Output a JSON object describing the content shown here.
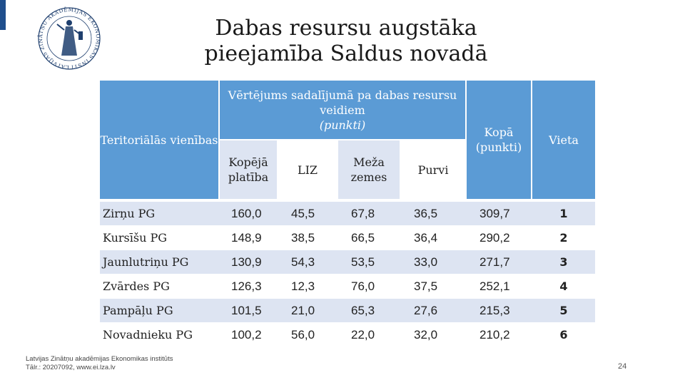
{
  "title": "Dabas resursu augstāka pieejamība Saldus novadā",
  "logo": {
    "ring_text": "LATVIJAS ZINĀTŅU AKADĒMIJAS EKONOMIKAS INSTITŪTS"
  },
  "table": {
    "headers": {
      "territory": "Teritoriālās vienības",
      "group": "Vērtējums sadalījumā pa dabas resursu veidiem",
      "group_unit": "(punkti)",
      "total": "Kopā (punkti)",
      "place": "Vieta",
      "sub": [
        "Kopējā platība",
        "LIZ",
        "Meža zemes",
        "Purvi"
      ]
    },
    "rows": [
      {
        "name": "Zirņu PG",
        "vals": [
          "160,0",
          "45,5",
          "67,8",
          "36,5"
        ],
        "total": "309,7",
        "place": "1"
      },
      {
        "name": "Kursīšu PG",
        "vals": [
          "148,9",
          "38,5",
          "66,5",
          "36,4"
        ],
        "total": "290,2",
        "place": "2"
      },
      {
        "name": "Jaunlutriņu PG",
        "vals": [
          "130,9",
          "54,3",
          "53,5",
          "33,0"
        ],
        "total": "271,7",
        "place": "3"
      },
      {
        "name": "Zvārdes PG",
        "vals": [
          "126,3",
          "12,3",
          "76,0",
          "37,5"
        ],
        "total": "252,1",
        "place": "4"
      },
      {
        "name": "Pampāļu PG",
        "vals": [
          "101,5",
          "21,0",
          "65,3",
          "27,6"
        ],
        "total": "215,3",
        "place": "5"
      },
      {
        "name": "Novadnieku PG",
        "vals": [
          "100,2",
          "56,0",
          "22,0",
          "32,0"
        ],
        "total": "210,2",
        "place": "6"
      }
    ]
  },
  "footer": {
    "line1": "Latvijas Zinātņu akadēmijas Ekonomikas institūts",
    "line2": "Tālr.: 20207092, www.ei.lza.lv"
  },
  "page_number": "24",
  "colors": {
    "header_blue": "#5b9bd5",
    "row_band": "#dde4f2",
    "accent": "#1f4e8c"
  }
}
